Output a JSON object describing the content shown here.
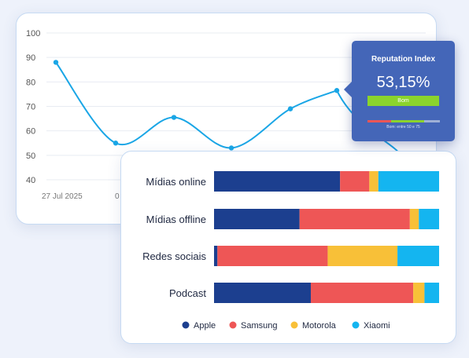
{
  "line_chart": {
    "y_ticks": [
      "100",
      "90",
      "80",
      "70",
      "60",
      "50",
      "40"
    ],
    "x_tick_labels": [
      "27 Jul 2025",
      "0"
    ]
  },
  "tooltip": {
    "title": "Reputation Index",
    "value": "53,15%",
    "badge": "Bom",
    "note": "Bom: entre 50 e 75"
  },
  "colors": {
    "line": "#1aa6e6",
    "apple": "#1c3f8f",
    "samsung": "#ee5656",
    "motorola": "#f8c038",
    "xiaomi": "#14b5f0",
    "tooltip_bg": "#4466b8",
    "badge": "#8bd42c",
    "border": "#c6daf3"
  },
  "chart_data": [
    {
      "type": "line",
      "title": "",
      "xlabel": "",
      "ylabel": "",
      "ylim": [
        40,
        100
      ],
      "grid": true,
      "series": [
        {
          "values": [
            88,
            55,
            65.5,
            53,
            69,
            76.5
          ]
        }
      ]
    },
    {
      "type": "bar",
      "orientation": "horizontal",
      "stacked": "percent",
      "categories": [
        "Mídias online",
        "Mídias offline",
        "Redes sociais",
        "Podcast"
      ],
      "series": [
        {
          "name": "Apple",
          "values": [
            56,
            38,
            1.5,
            43
          ]
        },
        {
          "name": "Samsung",
          "values": [
            13,
            49,
            49,
            45.5
          ]
        },
        {
          "name": "Motorola",
          "values": [
            4,
            4,
            31,
            5
          ]
        },
        {
          "name": "Xiaomi",
          "values": [
            27,
            9,
            18.5,
            6.5
          ]
        }
      ],
      "legend_position": "bottom"
    }
  ]
}
